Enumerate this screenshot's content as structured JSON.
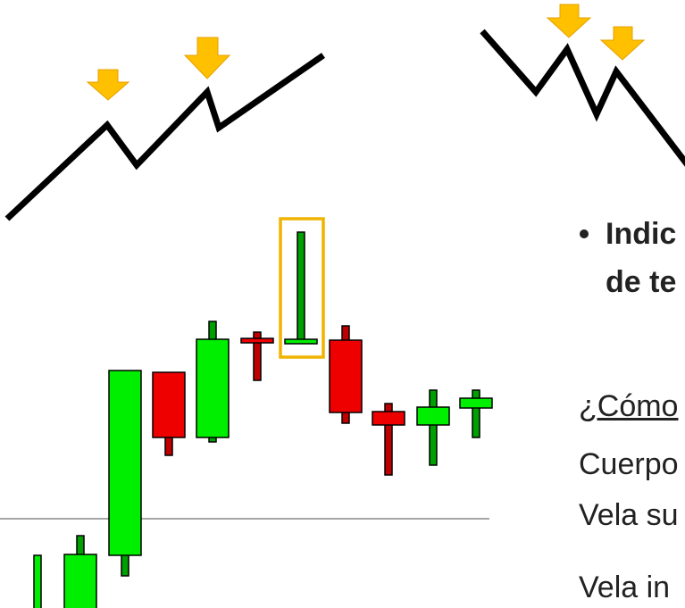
{
  "bullet": {
    "lines": [
      "Indic",
      "de te"
    ]
  },
  "body": {
    "heading": "¿Cómo",
    "lines": [
      "Cuerpo",
      "Vela su",
      "Vela in"
    ]
  }
}
